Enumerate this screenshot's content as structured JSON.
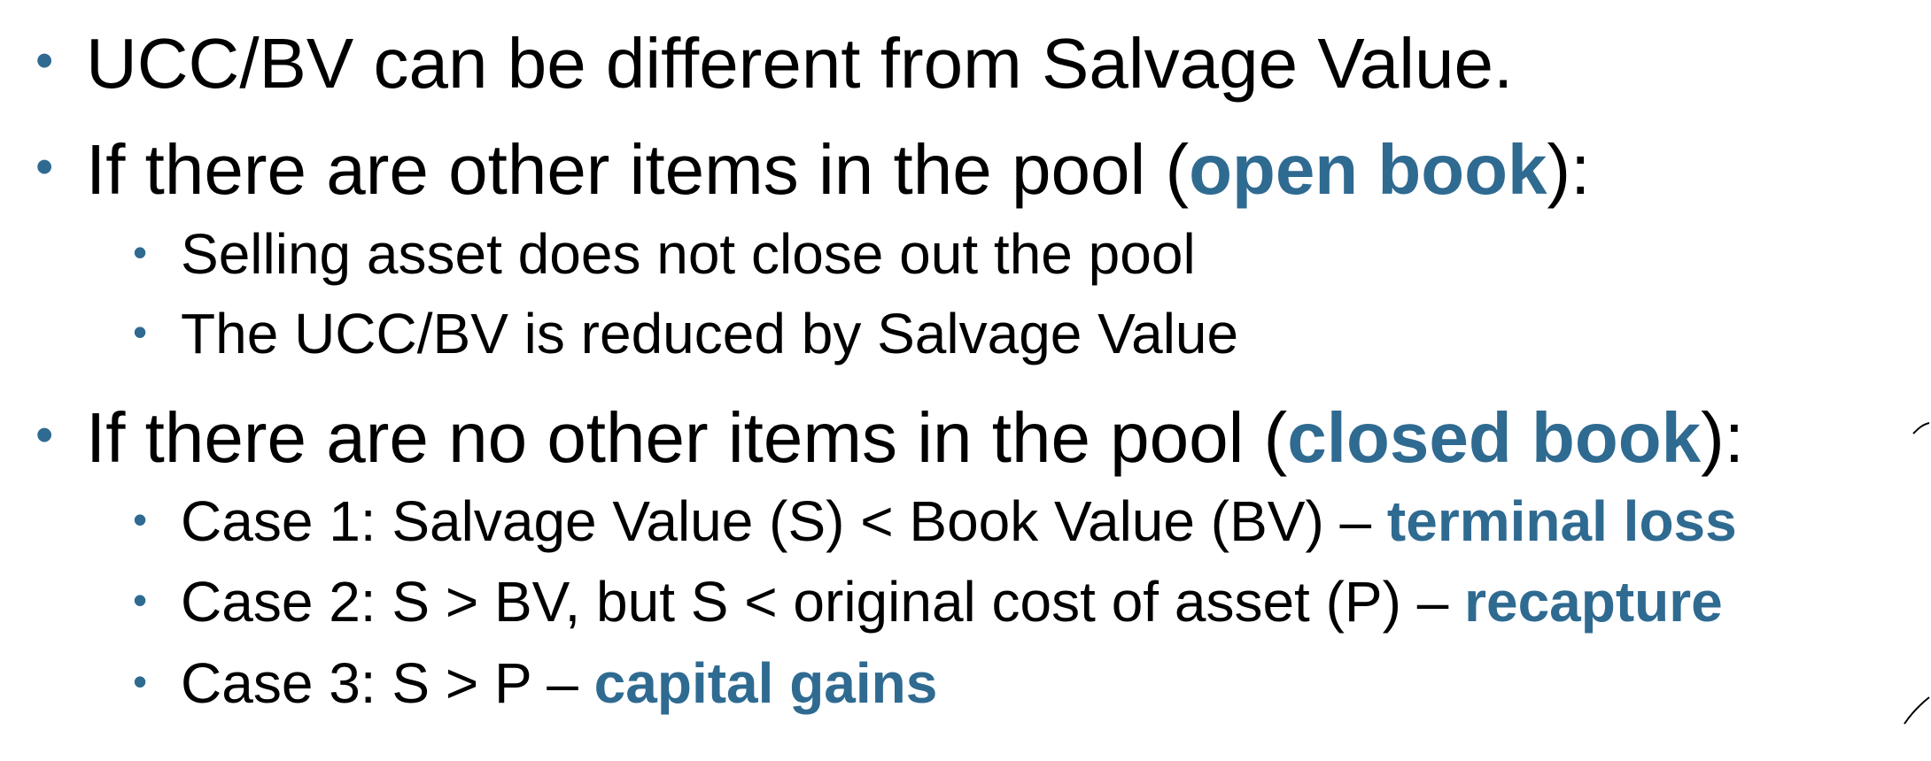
{
  "bullets": [
    {
      "level": 1,
      "text": "UCC/BV can be different from Salvage Value."
    },
    {
      "level": 1,
      "before": "If there are other items in the pool (",
      "accent": "open book",
      "after": "):"
    },
    {
      "level": 2,
      "text": "Selling asset does not close out the pool"
    },
    {
      "level": 2,
      "text": "The UCC/BV is reduced by Salvage Value"
    },
    {
      "level": 1,
      "before": "If there are no other items in the pool (",
      "accent": "closed book",
      "after": "):"
    },
    {
      "level": 2,
      "before": "Case 1: Salvage Value (S) < Book Value (BV) – ",
      "accent": "terminal loss"
    },
    {
      "level": 2,
      "before": "Case 2: S > BV, but S < original cost of asset (P) – ",
      "accent": "recapture"
    },
    {
      "level": 2,
      "before": "Case 3: S > P – ",
      "accent": "capital gains"
    }
  ],
  "bullet_glyph": "•",
  "colors": {
    "accent": "#2f6a91",
    "text": "#000000",
    "background": "#ffffff"
  }
}
